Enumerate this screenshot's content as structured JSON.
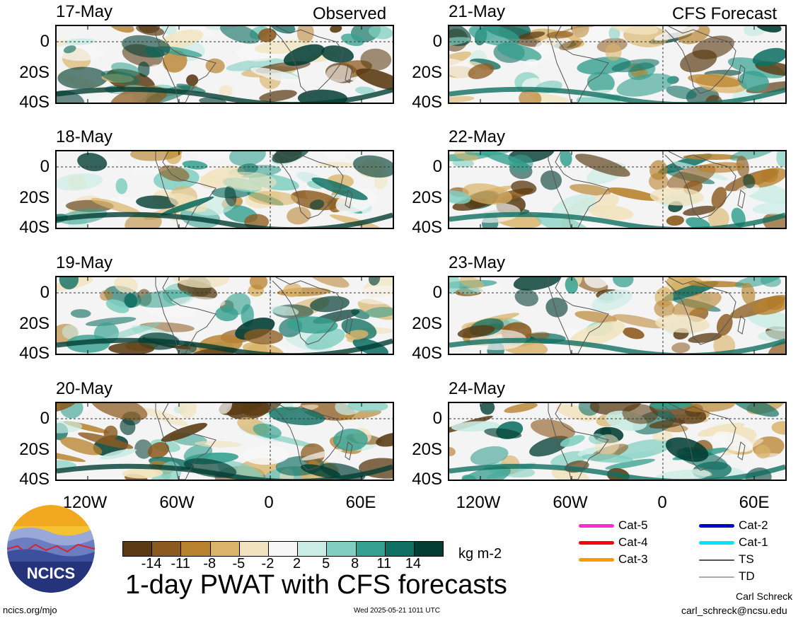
{
  "title": "1-day PWAT with CFS forecasts",
  "units": "kg m-2",
  "labels": {
    "observed": "Observed",
    "forecast": "CFS Forecast"
  },
  "panels_left": [
    {
      "date": "17-May"
    },
    {
      "date": "18-May"
    },
    {
      "date": "19-May"
    },
    {
      "date": "20-May"
    }
  ],
  "panels_right": [
    {
      "date": "21-May"
    },
    {
      "date": "22-May"
    },
    {
      "date": "23-May"
    },
    {
      "date": "24-May"
    }
  ],
  "lat_labels": [
    "0",
    "20S",
    "40S"
  ],
  "lon_labels": [
    "120W",
    "60W",
    "0",
    "60E"
  ],
  "colorbar": {
    "colors": [
      "#5a3a12",
      "#8c5a1e",
      "#b8822e",
      "#d9b46a",
      "#f1e3bd",
      "#f7f7f7",
      "#c9ece4",
      "#80cfc0",
      "#35a08f",
      "#0f6f62",
      "#023d33"
    ],
    "ticks": [
      "-14",
      "-11",
      "-8",
      "-5",
      "-2",
      "2",
      "5",
      "8",
      "11",
      "14"
    ]
  },
  "legend": [
    {
      "label": "Cat-5",
      "color": "#ff2ad4"
    },
    {
      "label": "Cat-4",
      "color": "#ff0000"
    },
    {
      "label": "Cat-3",
      "color": "#ff9900"
    },
    {
      "label": "Cat-2",
      "color": "#0000cc"
    },
    {
      "label": "Cat-1",
      "color": "#00e5ff"
    },
    {
      "label": "TS",
      "color": "#555555"
    },
    {
      "label": "TD",
      "color": "#aaaaaa"
    }
  ],
  "logo_text": "NCICS",
  "footer": {
    "url": "ncics.org/mjo",
    "timestamp": "Wed 2025-05-21 1011 UTC",
    "author": "Carl Schreck",
    "email": "carl_schreck@ncsu.edu"
  }
}
